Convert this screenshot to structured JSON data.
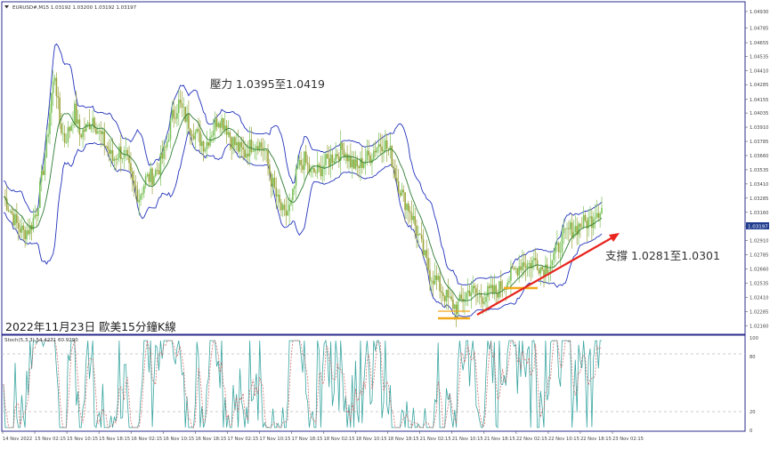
{
  "chart_data": [
    {
      "type": "candlestick",
      "header_text": "EURUSD#,M15  1.03192 1.03200 1.03192 1.03197",
      "annotation_resistance": "壓力 1.0395至1.0419",
      "annotation_support": "支撐 1.0281至1.0301",
      "caption": "2022年11月23日 歐美15分鐘K線",
      "current_price_label": "1.03197",
      "price_ticks": [
        "1.04930",
        "1.04785",
        "1.04655",
        "1.04535",
        "1.04410",
        "1.04285",
        "1.04155",
        "1.04035",
        "1.03910",
        "1.03785",
        "1.03660",
        "1.03535",
        "1.03410",
        "1.03285",
        "1.03160",
        "1.03035",
        "1.02910",
        "1.02785",
        "1.02660",
        "1.02535",
        "1.02410",
        "1.02285",
        "1.02160"
      ],
      "time_ticks": [
        "14 Nov 2022",
        "15 Nov 02:15",
        "15 Nov 10:15",
        "15 Nov 18:15",
        "16 Nov 02:15",
        "16 Nov 10:15",
        "16 Nov 18:15",
        "17 Nov 02:15",
        "17 Nov 10:15",
        "17 Nov 18:15",
        "18 Nov 02:15",
        "18 Nov 10:15",
        "18 Nov 18:15",
        "21 Nov 02:15",
        "21 Nov 10:15",
        "21 Nov 18:15",
        "22 Nov 02:15",
        "22 Nov 10:15",
        "22 Nov 18:15",
        "23 Nov 02:15"
      ],
      "ylim": [
        1.021,
        1.05
      ],
      "close_path": [
        [
          0,
          1.033
        ],
        [
          4,
          1.0318
        ],
        [
          8,
          1.0305
        ],
        [
          12,
          1.0298
        ],
        [
          16,
          1.0302
        ],
        [
          20,
          1.0318
        ],
        [
          23,
          1.0345
        ],
        [
          26,
          1.0375
        ],
        [
          29,
          1.042
        ],
        [
          31,
          1.0438
        ],
        [
          34,
          1.0395
        ],
        [
          37,
          1.038
        ],
        [
          40,
          1.039
        ],
        [
          43,
          1.0405
        ],
        [
          46,
          1.0385
        ],
        [
          50,
          1.039
        ],
        [
          54,
          1.04
        ],
        [
          58,
          1.0385
        ],
        [
          62,
          1.0375
        ],
        [
          66,
          1.0362
        ],
        [
          70,
          1.037
        ],
        [
          74,
          1.0365
        ],
        [
          78,
          1.034
        ],
        [
          82,
          1.033
        ],
        [
          86,
          1.0345
        ],
        [
          90,
          1.0348
        ],
        [
          94,
          1.0356
        ],
        [
          98,
          1.0372
        ],
        [
          102,
          1.04
        ],
        [
          106,
          1.0412
        ],
        [
          110,
          1.04
        ],
        [
          114,
          1.039
        ],
        [
          118,
          1.0382
        ],
        [
          122,
          1.0375
        ],
        [
          126,
          1.0388
        ],
        [
          130,
          1.04
        ],
        [
          134,
          1.0394
        ],
        [
          138,
          1.038
        ],
        [
          142,
          1.0372
        ],
        [
          146,
          1.0368
        ],
        [
          150,
          1.0376
        ],
        [
          154,
          1.0378
        ],
        [
          158,
          1.037
        ],
        [
          162,
          1.0345
        ],
        [
          166,
          1.0325
        ],
        [
          170,
          1.0312
        ],
        [
          174,
          1.0322
        ],
        [
          178,
          1.0355
        ],
        [
          182,
          1.0362
        ],
        [
          186,
          1.035
        ],
        [
          190,
          1.0352
        ],
        [
          194,
          1.0358
        ],
        [
          198,
          1.0364
        ],
        [
          202,
          1.0368
        ],
        [
          206,
          1.0372
        ],
        [
          210,
          1.036
        ],
        [
          214,
          1.0355
        ],
        [
          218,
          1.0362
        ],
        [
          222,
          1.0366
        ],
        [
          226,
          1.0375
        ],
        [
          230,
          1.0378
        ],
        [
          234,
          1.0368
        ],
        [
          238,
          1.0345
        ],
        [
          242,
          1.0328
        ],
        [
          246,
          1.0318
        ],
        [
          250,
          1.03
        ],
        [
          254,
          1.028
        ],
        [
          258,
          1.0262
        ],
        [
          262,
          1.0255
        ],
        [
          266,
          1.0245
        ],
        [
          270,
          1.0237
        ],
        [
          274,
          1.0232
        ],
        [
          278,
          1.024
        ],
        [
          282,
          1.0248
        ],
        [
          286,
          1.0244
        ],
        [
          290,
          1.0242
        ],
        [
          294,
          1.0245
        ],
        [
          298,
          1.0246
        ],
        [
          302,
          1.0252
        ],
        [
          306,
          1.0258
        ],
        [
          310,
          1.0266
        ],
        [
          314,
          1.0272
        ],
        [
          318,
          1.027
        ],
        [
          322,
          1.0274
        ],
        [
          326,
          1.0266
        ],
        [
          330,
          1.027
        ],
        [
          334,
          1.028
        ],
        [
          338,
          1.0292
        ],
        [
          342,
          1.03
        ],
        [
          346,
          1.0302
        ],
        [
          350,
          1.0306
        ],
        [
          354,
          1.0308
        ],
        [
          356,
          1.031
        ],
        [
          358,
          1.0318
        ],
        [
          360,
          1.0318
        ],
        [
          362,
          1.032
        ]
      ],
      "bollinger_width": 0.0028,
      "stochastic": {
        "label": "Stoch(5,3,3) 54.4271 60.9290",
        "ylim": [
          0,
          100
        ],
        "levels": [
          80,
          20
        ],
        "ticks": [
          "100",
          "80",
          "20",
          "0"
        ]
      },
      "colors": {
        "bull": "#7cc35a",
        "bear": "#9aa33a",
        "moving_average": "#2f7d32",
        "bands": "#2233bb",
        "annotation_line": "#e8251f",
        "range_box": "#f3a81a",
        "stoch_main": "#3aa6a1",
        "stoch_signal": "#d06060",
        "price_label_bg": "#1f3c8f"
      }
    }
  ]
}
